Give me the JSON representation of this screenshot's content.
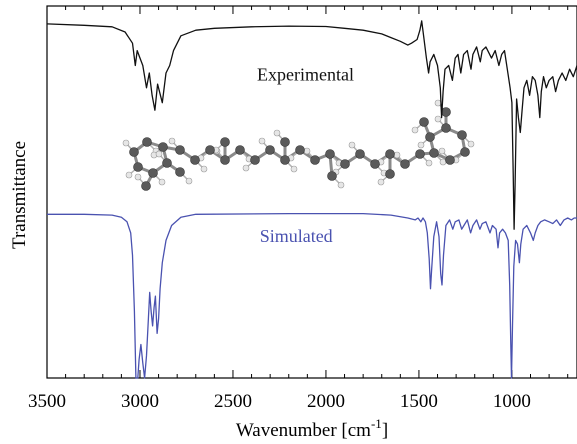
{
  "chart_data": {
    "type": "line",
    "title": "",
    "xlabel": "Wavenumber [cm",
    "xlabel_superscript": "-1",
    "xlabel_suffix": "]",
    "ylabel": "Transmittance",
    "xlim": [
      3500,
      650
    ],
    "x_reversed": true,
    "ylim": [
      0,
      1
    ],
    "y_ticks_labeled": false,
    "grid": false,
    "x_ticks": [
      {
        "value": 3500,
        "label": "3500"
      },
      {
        "value": 3000,
        "label": "3000"
      },
      {
        "value": 2500,
        "label": "2500"
      },
      {
        "value": 2000,
        "label": "2000"
      },
      {
        "value": 1500,
        "label": "1500"
      },
      {
        "value": 1000,
        "label": "1000"
      }
    ],
    "series": [
      {
        "name": "Experimental",
        "color": "#111111",
        "points": [
          [
            3500,
            0.952
          ],
          [
            3300,
            0.948
          ],
          [
            3150,
            0.944
          ],
          [
            3080,
            0.93
          ],
          [
            3040,
            0.9
          ],
          [
            3025,
            0.84
          ],
          [
            3015,
            0.88
          ],
          [
            3000,
            0.86
          ],
          [
            2985,
            0.84
          ],
          [
            2965,
            0.78
          ],
          [
            2950,
            0.82
          ],
          [
            2935,
            0.76
          ],
          [
            2920,
            0.72
          ],
          [
            2905,
            0.79
          ],
          [
            2880,
            0.74
          ],
          [
            2860,
            0.82
          ],
          [
            2840,
            0.84
          ],
          [
            2820,
            0.88
          ],
          [
            2780,
            0.92
          ],
          [
            2700,
            0.935
          ],
          [
            2600,
            0.94
          ],
          [
            2400,
            0.944
          ],
          [
            2200,
            0.946
          ],
          [
            2000,
            0.945
          ],
          [
            1900,
            0.94
          ],
          [
            1800,
            0.935
          ],
          [
            1700,
            0.925
          ],
          [
            1650,
            0.915
          ],
          [
            1600,
            0.905
          ],
          [
            1560,
            0.895
          ],
          [
            1540,
            0.9
          ],
          [
            1510,
            0.91
          ],
          [
            1495,
            0.935
          ],
          [
            1485,
            0.96
          ],
          [
            1475,
            0.92
          ],
          [
            1460,
            0.86
          ],
          [
            1448,
            0.82
          ],
          [
            1440,
            0.85
          ],
          [
            1420,
            0.87
          ],
          [
            1400,
            0.84
          ],
          [
            1385,
            0.78
          ],
          [
            1378,
            0.7
          ],
          [
            1370,
            0.77
          ],
          [
            1360,
            0.83
          ],
          [
            1340,
            0.84
          ],
          [
            1320,
            0.8
          ],
          [
            1305,
            0.86
          ],
          [
            1290,
            0.87
          ],
          [
            1275,
            0.82
          ],
          [
            1260,
            0.87
          ],
          [
            1240,
            0.88
          ],
          [
            1220,
            0.83
          ],
          [
            1210,
            0.87
          ],
          [
            1190,
            0.89
          ],
          [
            1170,
            0.85
          ],
          [
            1160,
            0.88
          ],
          [
            1140,
            0.89
          ],
          [
            1110,
            0.86
          ],
          [
            1090,
            0.88
          ],
          [
            1070,
            0.84
          ],
          [
            1055,
            0.87
          ],
          [
            1040,
            0.88
          ],
          [
            1025,
            0.83
          ],
          [
            1010,
            0.78
          ],
          [
            1000,
            0.74
          ],
          [
            993,
            0.55
          ],
          [
            988,
            0.4
          ],
          [
            983,
            0.52
          ],
          [
            975,
            0.75
          ],
          [
            965,
            0.7
          ],
          [
            955,
            0.66
          ],
          [
            945,
            0.72
          ],
          [
            935,
            0.78
          ],
          [
            920,
            0.8
          ],
          [
            905,
            0.76
          ],
          [
            890,
            0.81
          ],
          [
            875,
            0.8
          ],
          [
            860,
            0.76
          ],
          [
            850,
            0.7
          ],
          [
            842,
            0.77
          ],
          [
            830,
            0.81
          ],
          [
            815,
            0.78
          ],
          [
            800,
            0.8
          ],
          [
            780,
            0.81
          ],
          [
            765,
            0.77
          ],
          [
            750,
            0.8
          ],
          [
            730,
            0.82
          ],
          [
            710,
            0.8
          ],
          [
            690,
            0.83
          ],
          [
            670,
            0.81
          ],
          [
            650,
            0.84
          ]
        ]
      },
      {
        "name": "Simulated",
        "color": "#4a52b0",
        "points": [
          [
            3500,
            0.44
          ],
          [
            3300,
            0.44
          ],
          [
            3150,
            0.438
          ],
          [
            3100,
            0.432
          ],
          [
            3070,
            0.42
          ],
          [
            3050,
            0.39
          ],
          [
            3040,
            0.33
          ],
          [
            3030,
            0.18
          ],
          [
            3022,
            0.0
          ],
          [
            3012,
            0.0
          ],
          [
            3005,
            0.05
          ],
          [
            2995,
            0.09
          ],
          [
            2985,
            0.04
          ],
          [
            2975,
            0.0
          ],
          [
            2965,
            0.06
          ],
          [
            2955,
            0.16
          ],
          [
            2948,
            0.23
          ],
          [
            2940,
            0.18
          ],
          [
            2932,
            0.14
          ],
          [
            2924,
            0.19
          ],
          [
            2917,
            0.22
          ],
          [
            2908,
            0.12
          ],
          [
            2900,
            0.16
          ],
          [
            2892,
            0.24
          ],
          [
            2880,
            0.31
          ],
          [
            2860,
            0.37
          ],
          [
            2830,
            0.41
          ],
          [
            2780,
            0.432
          ],
          [
            2700,
            0.44
          ],
          [
            2200,
            0.442
          ],
          [
            1800,
            0.442
          ],
          [
            1650,
            0.438
          ],
          [
            1560,
            0.43
          ],
          [
            1520,
            0.425
          ],
          [
            1505,
            0.43
          ],
          [
            1490,
            0.42
          ],
          [
            1478,
            0.43
          ],
          [
            1465,
            0.42
          ],
          [
            1455,
            0.39
          ],
          [
            1445,
            0.32
          ],
          [
            1438,
            0.24
          ],
          [
            1432,
            0.29
          ],
          [
            1420,
            0.38
          ],
          [
            1405,
            0.42
          ],
          [
            1392,
            0.38
          ],
          [
            1383,
            0.28
          ],
          [
            1376,
            0.25
          ],
          [
            1368,
            0.33
          ],
          [
            1355,
            0.41
          ],
          [
            1335,
            0.425
          ],
          [
            1318,
            0.4
          ],
          [
            1305,
            0.42
          ],
          [
            1285,
            0.425
          ],
          [
            1270,
            0.4
          ],
          [
            1258,
            0.41
          ],
          [
            1240,
            0.425
          ],
          [
            1222,
            0.39
          ],
          [
            1210,
            0.41
          ],
          [
            1190,
            0.425
          ],
          [
            1172,
            0.4
          ],
          [
            1160,
            0.415
          ],
          [
            1140,
            0.42
          ],
          [
            1118,
            0.39
          ],
          [
            1105,
            0.41
          ],
          [
            1085,
            0.4
          ],
          [
            1075,
            0.35
          ],
          [
            1066,
            0.39
          ],
          [
            1050,
            0.4
          ],
          [
            1035,
            0.39
          ],
          [
            1020,
            0.37
          ],
          [
            1012,
            0.25
          ],
          [
            1006,
            0.09
          ],
          [
            1002,
            0.0
          ],
          [
            997,
            0.14
          ],
          [
            990,
            0.3
          ],
          [
            980,
            0.37
          ],
          [
            970,
            0.36
          ],
          [
            960,
            0.31
          ],
          [
            952,
            0.36
          ],
          [
            940,
            0.4
          ],
          [
            920,
            0.41
          ],
          [
            900,
            0.39
          ],
          [
            885,
            0.37
          ],
          [
            875,
            0.39
          ],
          [
            860,
            0.41
          ],
          [
            845,
            0.42
          ],
          [
            825,
            0.425
          ],
          [
            800,
            0.42
          ],
          [
            780,
            0.415
          ],
          [
            760,
            0.425
          ],
          [
            740,
            0.41
          ],
          [
            720,
            0.425
          ],
          [
            700,
            0.43
          ],
          [
            680,
            0.425
          ],
          [
            665,
            0.43
          ],
          [
            650,
            0.43
          ]
        ]
      }
    ],
    "annotations": [
      {
        "text": "Experimental",
        "x": 2110,
        "y": 0.8,
        "color": "#111111"
      },
      {
        "text": "Simulated",
        "x": 2160,
        "y": 0.365,
        "color": "#4a52b0"
      }
    ],
    "inset": {
      "description": "ball-and-stick molecular model",
      "atom_colors": {
        "carbon": "#5a5a5a",
        "hydrogen": "#e6e6e6"
      }
    }
  }
}
